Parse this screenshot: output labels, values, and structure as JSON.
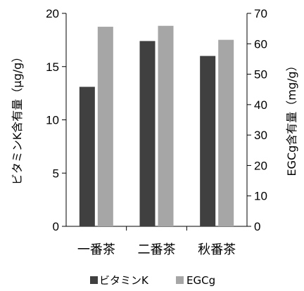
{
  "chart_data": {
    "type": "bar",
    "categories": [
      "一番茶",
      "二番茶",
      "秋番茶"
    ],
    "series": [
      {
        "name": "ビタミンK",
        "axis": "left",
        "color": "#404040",
        "values": [
          13.1,
          17.4,
          16.0
        ]
      },
      {
        "name": "EGCg",
        "axis": "right",
        "color": "#a6a6a6",
        "values": [
          65.6,
          65.9,
          61.3
        ]
      }
    ],
    "y_left": {
      "label": "ビタミンK含有量（μg/g）",
      "ylim": [
        0,
        20
      ],
      "ticks": [
        "0",
        "5",
        "10",
        "15",
        "20"
      ]
    },
    "y_right": {
      "label": "EGCg含有量（mg/g）",
      "ylim": [
        0,
        70
      ],
      "ticks": [
        "0",
        "10",
        "20",
        "30",
        "40",
        "50",
        "60",
        "70"
      ]
    },
    "legend": {
      "placement": "bottom",
      "entries": [
        "ビタミンK",
        "EGCg"
      ]
    },
    "grid": false
  }
}
